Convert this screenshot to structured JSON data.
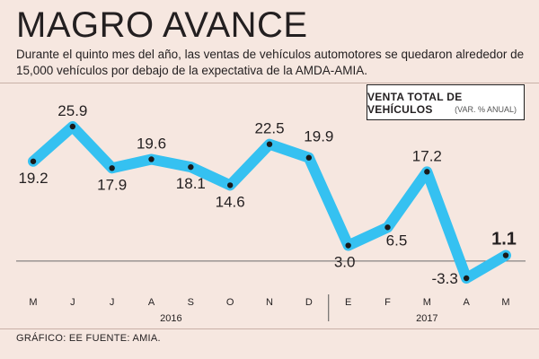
{
  "title": "MAGRO AVANCE",
  "subtitle": "Durante el quinto mes del año, las ventas de vehículos automotores se quedaron alrededor de 15,000 vehículos por debajo de la expectativa de la AMDA-AMIA.",
  "legend": {
    "title": "VENTA TOTAL DE VEHÍCULOS",
    "subtitle": "(VAR. % ANUAL)"
  },
  "footer": "GRÁFICO: EE  FUENTE: AMIA.",
  "colors": {
    "background": "#f6e7e0",
    "line": "#35c1f1",
    "marker": "#1a1a1a",
    "text": "#231f20"
  },
  "chart_data": {
    "type": "line",
    "title": "VENTA TOTAL DE VEHÍCULOS",
    "ylabel": "(VAR. % ANUAL)",
    "categories": [
      "M",
      "J",
      "J",
      "A",
      "S",
      "O",
      "N",
      "D",
      "E",
      "F",
      "M",
      "A",
      "M"
    ],
    "value_labels": [
      "19.2",
      "25.9",
      "17.9",
      "19.6",
      "18.1",
      "14.6",
      "22.5",
      "19.9",
      "3.0",
      "6.5",
      "17.2",
      "-3.3",
      "1.1"
    ],
    "series": [
      {
        "name": "Venta total de vehículos",
        "values": [
          19.2,
          25.9,
          17.9,
          19.6,
          18.1,
          14.6,
          22.5,
          19.9,
          3.0,
          6.5,
          17.2,
          -3.3,
          1.1
        ]
      }
    ],
    "years": [
      {
        "label": "2016",
        "start_index": 0,
        "end_index": 7
      },
      {
        "label": "2017",
        "start_index": 8,
        "end_index": 12
      }
    ],
    "reference_line": 0,
    "ylim": [
      -5,
      28
    ]
  }
}
